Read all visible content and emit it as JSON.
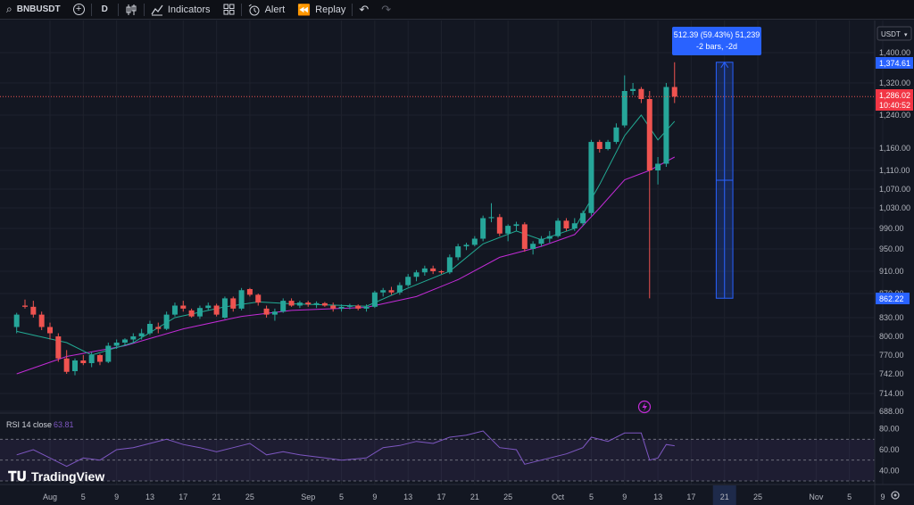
{
  "toolbar": {
    "symbol": "BNBUSDT",
    "interval": "D",
    "indicators_label": "Indicators",
    "alert_label": "Alert",
    "replay_label": "Replay"
  },
  "currency_button": "USDT",
  "price_badges": {
    "target": "1,374.61",
    "current": "1,286.02",
    "countdown": "10:40:52",
    "low": "862.22"
  },
  "measure_tooltip": {
    "line1": "512.39 (59.43%) 51,239",
    "line2": "-2 bars, -2d"
  },
  "rsi": {
    "label": "RSI 14 close",
    "value": "63.81"
  },
  "branding": "TradingView",
  "colors": {
    "up": "#26a69a",
    "down": "#ef5350",
    "ema_fast": "#22ab94",
    "ema_slow": "#c22bd6",
    "rsi_line": "#7e57c2",
    "measure": "#2962ff"
  },
  "chart_data": {
    "type": "candlestick",
    "price_axis_ticks": [
      "1,400.00",
      "1,320.00",
      "1,240.00",
      "1,160.00",
      "1,110.00",
      "1,070.00",
      "1,030.00",
      "990.00",
      "950.00",
      "910.00",
      "870.00",
      "830.00",
      "800.00",
      "770.00",
      "742.00",
      "714.00",
      "688.00"
    ],
    "price_axis_values": [
      1400,
      1320,
      1240,
      1160,
      1110,
      1070,
      1030,
      990,
      950,
      910,
      870,
      830,
      800,
      770,
      742,
      714,
      688
    ],
    "rsi_axis_ticks": [
      "80.00",
      "60.00",
      "40.00"
    ],
    "rsi_axis_values": [
      80,
      60,
      40
    ],
    "rsi_bands": [
      70,
      50,
      30
    ],
    "time_axis_labels": [
      "Aug",
      "5",
      "9",
      "13",
      "17",
      "21",
      "25",
      "Sep",
      "5",
      "9",
      "13",
      "17",
      "21",
      "25",
      "Oct",
      "5",
      "9",
      "13",
      "17",
      "21",
      "25",
      "Nov",
      "5",
      "9"
    ],
    "time_axis_dates": [
      "2025-08-01",
      "2025-08-05",
      "2025-08-09",
      "2025-08-13",
      "2025-08-17",
      "2025-08-21",
      "2025-08-25",
      "2025-09-01",
      "2025-09-05",
      "2025-09-09",
      "2025-09-13",
      "2025-09-17",
      "2025-09-21",
      "2025-09-25",
      "2025-10-01",
      "2025-10-05",
      "2025-10-09",
      "2025-10-13",
      "2025-10-17",
      "2025-10-21",
      "2025-10-25",
      "2025-11-01",
      "2025-11-05",
      "2025-11-09"
    ],
    "highlighted_date": "2025-10-21",
    "current_price": 1286.02,
    "candles": [
      {
        "date": "2025-07-28",
        "o": 815,
        "h": 838,
        "l": 805,
        "c": 835
      },
      {
        "date": "2025-07-29",
        "o": 850,
        "h": 860,
        "l": 845,
        "c": 848
      },
      {
        "date": "2025-07-30",
        "o": 848,
        "h": 858,
        "l": 830,
        "c": 835
      },
      {
        "date": "2025-07-31",
        "o": 835,
        "h": 840,
        "l": 810,
        "c": 815
      },
      {
        "date": "2025-08-01",
        "o": 815,
        "h": 822,
        "l": 795,
        "c": 805
      },
      {
        "date": "2025-08-02",
        "o": 800,
        "h": 805,
        "l": 760,
        "c": 765
      },
      {
        "date": "2025-08-03",
        "o": 765,
        "h": 778,
        "l": 742,
        "c": 745
      },
      {
        "date": "2025-08-04",
        "o": 746,
        "h": 765,
        "l": 740,
        "c": 762
      },
      {
        "date": "2025-08-05",
        "o": 762,
        "h": 770,
        "l": 755,
        "c": 758
      },
      {
        "date": "2025-08-06",
        "o": 758,
        "h": 775,
        "l": 752,
        "c": 770
      },
      {
        "date": "2025-08-07",
        "o": 770,
        "h": 772,
        "l": 755,
        "c": 760
      },
      {
        "date": "2025-08-08",
        "o": 760,
        "h": 790,
        "l": 758,
        "c": 785
      },
      {
        "date": "2025-08-09",
        "o": 785,
        "h": 795,
        "l": 780,
        "c": 790
      },
      {
        "date": "2025-08-10",
        "o": 790,
        "h": 797,
        "l": 785,
        "c": 795
      },
      {
        "date": "2025-08-11",
        "o": 795,
        "h": 805,
        "l": 790,
        "c": 800
      },
      {
        "date": "2025-08-12",
        "o": 800,
        "h": 812,
        "l": 795,
        "c": 805
      },
      {
        "date": "2025-08-13",
        "o": 805,
        "h": 825,
        "l": 802,
        "c": 820
      },
      {
        "date": "2025-08-14",
        "o": 815,
        "h": 822,
        "l": 805,
        "c": 812
      },
      {
        "date": "2025-08-15",
        "o": 812,
        "h": 840,
        "l": 810,
        "c": 835
      },
      {
        "date": "2025-08-16",
        "o": 835,
        "h": 855,
        "l": 832,
        "c": 850
      },
      {
        "date": "2025-08-17",
        "o": 850,
        "h": 858,
        "l": 840,
        "c": 845
      },
      {
        "date": "2025-08-18",
        "o": 842,
        "h": 845,
        "l": 830,
        "c": 832
      },
      {
        "date": "2025-08-19",
        "o": 832,
        "h": 850,
        "l": 828,
        "c": 846
      },
      {
        "date": "2025-08-20",
        "o": 846,
        "h": 855,
        "l": 842,
        "c": 850
      },
      {
        "date": "2025-08-21",
        "o": 850,
        "h": 853,
        "l": 832,
        "c": 835
      },
      {
        "date": "2025-08-22",
        "o": 830,
        "h": 865,
        "l": 828,
        "c": 862
      },
      {
        "date": "2025-08-23",
        "o": 862,
        "h": 865,
        "l": 840,
        "c": 845
      },
      {
        "date": "2025-08-24",
        "o": 845,
        "h": 880,
        "l": 842,
        "c": 876
      },
      {
        "date": "2025-08-25",
        "o": 878,
        "h": 880,
        "l": 865,
        "c": 868
      },
      {
        "date": "2025-08-26",
        "o": 868,
        "h": 870,
        "l": 850,
        "c": 855
      },
      {
        "date": "2025-08-27",
        "o": 845,
        "h": 850,
        "l": 830,
        "c": 835
      },
      {
        "date": "2025-08-28",
        "o": 835,
        "h": 845,
        "l": 825,
        "c": 840
      },
      {
        "date": "2025-08-29",
        "o": 840,
        "h": 862,
        "l": 838,
        "c": 858
      },
      {
        "date": "2025-08-30",
        "o": 858,
        "h": 862,
        "l": 848,
        "c": 850
      },
      {
        "date": "2025-08-31",
        "o": 850,
        "h": 858,
        "l": 846,
        "c": 855
      },
      {
        "date": "2025-09-01",
        "o": 855,
        "h": 858,
        "l": 848,
        "c": 852
      },
      {
        "date": "2025-09-02",
        "o": 852,
        "h": 857,
        "l": 846,
        "c": 854
      },
      {
        "date": "2025-09-03",
        "o": 854,
        "h": 856,
        "l": 848,
        "c": 850
      },
      {
        "date": "2025-09-04",
        "o": 850,
        "h": 855,
        "l": 840,
        "c": 845
      },
      {
        "date": "2025-09-05",
        "o": 845,
        "h": 852,
        "l": 840,
        "c": 848
      },
      {
        "date": "2025-09-06",
        "o": 848,
        "h": 853,
        "l": 844,
        "c": 850
      },
      {
        "date": "2025-09-07",
        "o": 850,
        "h": 852,
        "l": 842,
        "c": 845
      },
      {
        "date": "2025-09-08",
        "o": 845,
        "h": 852,
        "l": 840,
        "c": 848
      },
      {
        "date": "2025-09-09",
        "o": 848,
        "h": 875,
        "l": 846,
        "c": 872
      },
      {
        "date": "2025-09-10",
        "o": 872,
        "h": 880,
        "l": 865,
        "c": 876
      },
      {
        "date": "2025-09-11",
        "o": 876,
        "h": 882,
        "l": 868,
        "c": 872
      },
      {
        "date": "2025-09-12",
        "o": 872,
        "h": 890,
        "l": 868,
        "c": 885
      },
      {
        "date": "2025-09-13",
        "o": 885,
        "h": 905,
        "l": 882,
        "c": 900
      },
      {
        "date": "2025-09-14",
        "o": 900,
        "h": 912,
        "l": 892,
        "c": 908
      },
      {
        "date": "2025-09-15",
        "o": 908,
        "h": 920,
        "l": 902,
        "c": 915
      },
      {
        "date": "2025-09-16",
        "o": 915,
        "h": 920,
        "l": 905,
        "c": 910
      },
      {
        "date": "2025-09-17",
        "o": 910,
        "h": 912,
        "l": 905,
        "c": 908
      },
      {
        "date": "2025-09-18",
        "o": 908,
        "h": 940,
        "l": 905,
        "c": 935
      },
      {
        "date": "2025-09-19",
        "o": 935,
        "h": 960,
        "l": 930,
        "c": 955
      },
      {
        "date": "2025-09-20",
        "o": 955,
        "h": 962,
        "l": 948,
        "c": 958
      },
      {
        "date": "2025-09-21",
        "o": 958,
        "h": 975,
        "l": 955,
        "c": 970
      },
      {
        "date": "2025-09-22",
        "o": 970,
        "h": 1015,
        "l": 965,
        "c": 1010
      },
      {
        "date": "2025-09-23",
        "o": 1010,
        "h": 1040,
        "l": 1002,
        "c": 1012
      },
      {
        "date": "2025-09-24",
        "o": 1012,
        "h": 1018,
        "l": 975,
        "c": 980
      },
      {
        "date": "2025-09-25",
        "o": 980,
        "h": 998,
        "l": 965,
        "c": 995
      },
      {
        "date": "2025-09-26",
        "o": 995,
        "h": 1003,
        "l": 985,
        "c": 998
      },
      {
        "date": "2025-09-27",
        "o": 998,
        "h": 1002,
        "l": 945,
        "c": 950
      },
      {
        "date": "2025-09-28",
        "o": 950,
        "h": 965,
        "l": 940,
        "c": 960
      },
      {
        "date": "2025-09-29",
        "o": 960,
        "h": 975,
        "l": 955,
        "c": 970
      },
      {
        "date": "2025-09-30",
        "o": 970,
        "h": 985,
        "l": 962,
        "c": 975
      },
      {
        "date": "2025-10-01",
        "o": 975,
        "h": 1010,
        "l": 972,
        "c": 1005
      },
      {
        "date": "2025-10-02",
        "o": 1005,
        "h": 1010,
        "l": 985,
        "c": 990
      },
      {
        "date": "2025-10-03",
        "o": 990,
        "h": 1010,
        "l": 985,
        "c": 1000
      },
      {
        "date": "2025-10-04",
        "o": 1000,
        "h": 1025,
        "l": 995,
        "c": 1020
      },
      {
        "date": "2025-10-05",
        "o": 1020,
        "h": 1180,
        "l": 1015,
        "c": 1175
      },
      {
        "date": "2025-10-06",
        "o": 1175,
        "h": 1180,
        "l": 1150,
        "c": 1158
      },
      {
        "date": "2025-10-07",
        "o": 1158,
        "h": 1180,
        "l": 1155,
        "c": 1175
      },
      {
        "date": "2025-10-08",
        "o": 1175,
        "h": 1220,
        "l": 1170,
        "c": 1210
      },
      {
        "date": "2025-10-09",
        "o": 1215,
        "h": 1340,
        "l": 1210,
        "c": 1300
      },
      {
        "date": "2025-10-10",
        "o": 1300,
        "h": 1320,
        "l": 1290,
        "c": 1305
      },
      {
        "date": "2025-10-11",
        "o": 1305,
        "h": 1310,
        "l": 1270,
        "c": 1280
      },
      {
        "date": "2025-10-12",
        "o": 1280,
        "h": 1300,
        "l": 862,
        "c": 1110
      },
      {
        "date": "2025-10-13",
        "o": 1110,
        "h": 1140,
        "l": 1080,
        "c": 1125
      },
      {
        "date": "2025-10-14",
        "o": 1125,
        "h": 1320,
        "l": 1118,
        "c": 1310
      },
      {
        "date": "2025-10-15",
        "o": 1310,
        "h": 1374.61,
        "l": 1270,
        "c": 1286.02
      }
    ],
    "ema_fast": [
      {
        "date": "2025-07-28",
        "v": 808
      },
      {
        "date": "2025-08-03",
        "v": 790
      },
      {
        "date": "2025-08-06",
        "v": 770
      },
      {
        "date": "2025-08-11",
        "v": 790
      },
      {
        "date": "2025-08-16",
        "v": 830
      },
      {
        "date": "2025-08-22",
        "v": 848
      },
      {
        "date": "2025-08-26",
        "v": 856
      },
      {
        "date": "2025-08-30",
        "v": 853
      },
      {
        "date": "2025-09-08",
        "v": 849
      },
      {
        "date": "2025-09-13",
        "v": 880
      },
      {
        "date": "2025-09-18",
        "v": 910
      },
      {
        "date": "2025-09-22",
        "v": 960
      },
      {
        "date": "2025-09-26",
        "v": 985
      },
      {
        "date": "2025-09-29",
        "v": 968
      },
      {
        "date": "2025-10-03",
        "v": 990
      },
      {
        "date": "2025-10-06",
        "v": 1080
      },
      {
        "date": "2025-10-09",
        "v": 1190
      },
      {
        "date": "2025-10-11",
        "v": 1240
      },
      {
        "date": "2025-10-13",
        "v": 1180
      },
      {
        "date": "2025-10-15",
        "v": 1225
      }
    ],
    "ema_slow": [
      {
        "date": "2025-07-28",
        "v": 742
      },
      {
        "date": "2025-08-03",
        "v": 768
      },
      {
        "date": "2025-08-10",
        "v": 785
      },
      {
        "date": "2025-08-17",
        "v": 812
      },
      {
        "date": "2025-08-24",
        "v": 832
      },
      {
        "date": "2025-08-30",
        "v": 842
      },
      {
        "date": "2025-09-08",
        "v": 847
      },
      {
        "date": "2025-09-14",
        "v": 865
      },
      {
        "date": "2025-09-19",
        "v": 895
      },
      {
        "date": "2025-09-24",
        "v": 935
      },
      {
        "date": "2025-09-29",
        "v": 955
      },
      {
        "date": "2025-10-03",
        "v": 978
      },
      {
        "date": "2025-10-06",
        "v": 1030
      },
      {
        "date": "2025-10-09",
        "v": 1090
      },
      {
        "date": "2025-10-12",
        "v": 1110
      },
      {
        "date": "2025-10-15",
        "v": 1140
      }
    ],
    "rsi_values": [
      {
        "date": "2025-07-28",
        "v": 55
      },
      {
        "date": "2025-07-30",
        "v": 60
      },
      {
        "date": "2025-08-01",
        "v": 52
      },
      {
        "date": "2025-08-03",
        "v": 44
      },
      {
        "date": "2025-08-05",
        "v": 52
      },
      {
        "date": "2025-08-07",
        "v": 50
      },
      {
        "date": "2025-08-09",
        "v": 60
      },
      {
        "date": "2025-08-11",
        "v": 62
      },
      {
        "date": "2025-08-13",
        "v": 66
      },
      {
        "date": "2025-08-15",
        "v": 70
      },
      {
        "date": "2025-08-17",
        "v": 65
      },
      {
        "date": "2025-08-19",
        "v": 62
      },
      {
        "date": "2025-08-21",
        "v": 58
      },
      {
        "date": "2025-08-23",
        "v": 62
      },
      {
        "date": "2025-08-25",
        "v": 66
      },
      {
        "date": "2025-08-27",
        "v": 55
      },
      {
        "date": "2025-08-29",
        "v": 58
      },
      {
        "date": "2025-08-31",
        "v": 55
      },
      {
        "date": "2025-09-03",
        "v": 52
      },
      {
        "date": "2025-09-05",
        "v": 50
      },
      {
        "date": "2025-09-08",
        "v": 52
      },
      {
        "date": "2025-09-10",
        "v": 62
      },
      {
        "date": "2025-09-12",
        "v": 64
      },
      {
        "date": "2025-09-14",
        "v": 68
      },
      {
        "date": "2025-09-16",
        "v": 66
      },
      {
        "date": "2025-09-18",
        "v": 72
      },
      {
        "date": "2025-09-20",
        "v": 74
      },
      {
        "date": "2025-09-22",
        "v": 78
      },
      {
        "date": "2025-09-24",
        "v": 62
      },
      {
        "date": "2025-09-26",
        "v": 60
      },
      {
        "date": "2025-09-27",
        "v": 46
      },
      {
        "date": "2025-09-30",
        "v": 52
      },
      {
        "date": "2025-10-02",
        "v": 56
      },
      {
        "date": "2025-10-04",
        "v": 62
      },
      {
        "date": "2025-10-05",
        "v": 72
      },
      {
        "date": "2025-10-07",
        "v": 68
      },
      {
        "date": "2025-10-09",
        "v": 76
      },
      {
        "date": "2025-10-11",
        "v": 76
      },
      {
        "date": "2025-10-12",
        "v": 50
      },
      {
        "date": "2025-10-13",
        "v": 52
      },
      {
        "date": "2025-10-14",
        "v": 65
      },
      {
        "date": "2025-10-15",
        "v": 63.81
      }
    ],
    "measure_range": {
      "from": 862.22,
      "to": 1374.61
    }
  }
}
